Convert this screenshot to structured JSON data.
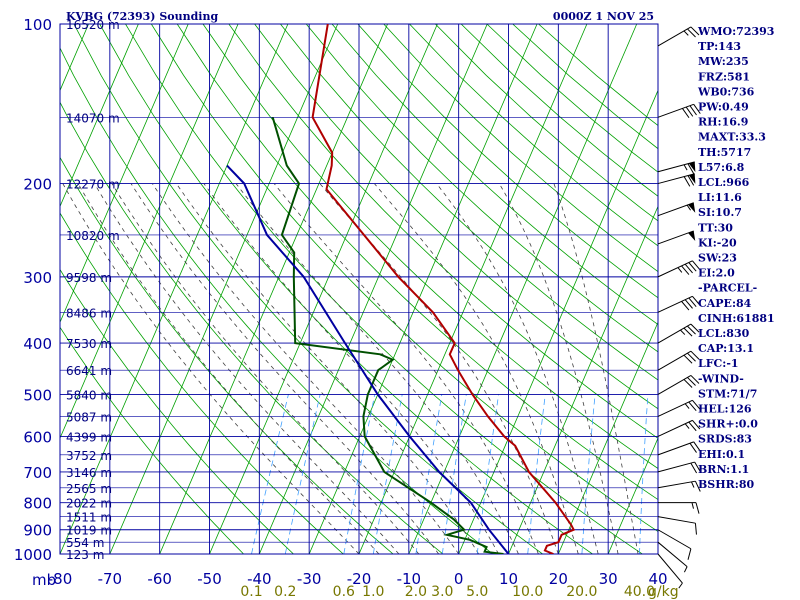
{
  "header": {
    "station": "KVBG (72393) Sounding",
    "time": "0000Z  1 NOV 25"
  },
  "chart_data": {
    "type": "line",
    "diagram": "skew-t log-p",
    "pressure_levels": [
      100,
      200,
      300,
      400,
      500,
      600,
      700,
      800,
      900,
      1000
    ],
    "pressure_labels": [
      "100",
      "200",
      "300",
      "400",
      "500",
      "600",
      "700",
      "800",
      "900",
      "1000"
    ],
    "pressure_unit": "mb",
    "temp_ticks": [
      -80,
      -70,
      -60,
      -50,
      -40,
      -30,
      -20,
      -10,
      0,
      10,
      20,
      30,
      40
    ],
    "temp_labels": [
      "-80",
      "-70",
      "-60",
      "-50",
      "-40",
      "-30",
      "-20",
      "-10",
      "0",
      "10",
      "20",
      "30",
      "40"
    ],
    "xlim": [
      -80,
      40
    ],
    "ylim": [
      1000,
      100
    ],
    "height_labels": [
      {
        "p": 100,
        "label": "16520 m"
      },
      {
        "p": 150,
        "label": "14070 m"
      },
      {
        "p": 200,
        "label": "12270 m"
      },
      {
        "p": 250,
        "label": "10820 m"
      },
      {
        "p": 300,
        "label": "9598 m"
      },
      {
        "p": 350,
        "label": "8486 m"
      },
      {
        "p": 400,
        "label": "7530 m"
      },
      {
        "p": 450,
        "label": "6641 m"
      },
      {
        "p": 500,
        "label": "5840 m"
      },
      {
        "p": 550,
        "label": "5087 m"
      },
      {
        "p": 600,
        "label": "4399 m"
      },
      {
        "p": 650,
        "label": "3752 m"
      },
      {
        "p": 700,
        "label": "3146 m"
      },
      {
        "p": 750,
        "label": "2565 m"
      },
      {
        "p": 800,
        "label": "2022 m"
      },
      {
        "p": 850,
        "label": "1511 m"
      },
      {
        "p": 900,
        "label": "1019 m"
      },
      {
        "p": 950,
        "label": "554 m"
      },
      {
        "p": 1000,
        "label": "123 m"
      }
    ],
    "mixing_ratio_labels": [
      {
        "w": 0.1,
        "label": "0.1"
      },
      {
        "w": 0.2,
        "label": "0.2"
      },
      {
        "w": 0.6,
        "label": "0.6"
      },
      {
        "w": 1.0,
        "label": "1.0"
      },
      {
        "w": 2.0,
        "label": "2.0"
      },
      {
        "w": 3.0,
        "label": "3.0"
      },
      {
        "w": 5.0,
        "label": "5.0"
      },
      {
        "w": 10.0,
        "label": "10.0"
      },
      {
        "w": 20.0,
        "label": "20.0"
      },
      {
        "w": 40.0,
        "label": "40.0"
      }
    ],
    "mixing_ratio_unit": "g/kg",
    "series": [
      {
        "role": "temperature",
        "color": "#b00000",
        "points": [
          [
            100,
            -72
          ],
          [
            150,
            -67
          ],
          [
            175,
            -60
          ],
          [
            185,
            -59
          ],
          [
            205,
            -58
          ],
          [
            300,
            -36
          ],
          [
            350,
            -26
          ],
          [
            400,
            -19
          ],
          [
            420,
            -19
          ],
          [
            450,
            -16
          ],
          [
            500,
            -11
          ],
          [
            550,
            -6
          ],
          [
            600,
            -1
          ],
          [
            625,
            2
          ],
          [
            700,
            7
          ],
          [
            800,
            15
          ],
          [
            880,
            20
          ],
          [
            900,
            21
          ],
          [
            920,
            19
          ],
          [
            950,
            19
          ],
          [
            965,
            17
          ],
          [
            985,
            17
          ],
          [
            1000,
            19
          ]
        ]
      },
      {
        "role": "dewpoint",
        "color": "#005000",
        "points": [
          [
            150,
            -75
          ],
          [
            185,
            -68
          ],
          [
            200,
            -64
          ],
          [
            250,
            -63
          ],
          [
            270,
            -59
          ],
          [
            300,
            -57
          ],
          [
            400,
            -51
          ],
          [
            420,
            -33
          ],
          [
            430,
            -30
          ],
          [
            450,
            -32
          ],
          [
            500,
            -32
          ],
          [
            550,
            -31
          ],
          [
            600,
            -29
          ],
          [
            700,
            -22
          ],
          [
            800,
            -10
          ],
          [
            860,
            -4
          ],
          [
            900,
            -1
          ],
          [
            920,
            -4
          ],
          [
            940,
            1
          ],
          [
            955,
            3
          ],
          [
            970,
            5
          ],
          [
            990,
            5
          ],
          [
            1000,
            9
          ]
        ]
      },
      {
        "role": "parcel",
        "color": "#0000a0",
        "points": [
          [
            185,
            -80
          ],
          [
            200,
            -75
          ],
          [
            250,
            -66
          ],
          [
            300,
            -55
          ],
          [
            400,
            -41
          ],
          [
            500,
            -30
          ],
          [
            600,
            -20
          ],
          [
            700,
            -11
          ],
          [
            800,
            -2
          ],
          [
            900,
            4
          ],
          [
            1000,
            10
          ]
        ]
      }
    ],
    "winds": [
      {
        "p": 110,
        "dir": 240,
        "spd": 25
      },
      {
        "p": 150,
        "dir": 250,
        "spd": 40
      },
      {
        "p": 190,
        "dir": 255,
        "spd": 65
      },
      {
        "p": 200,
        "dir": 255,
        "spd": 70
      },
      {
        "p": 230,
        "dir": 250,
        "spd": 55
      },
      {
        "p": 260,
        "dir": 250,
        "spd": 50
      },
      {
        "p": 300,
        "dir": 245,
        "spd": 45
      },
      {
        "p": 350,
        "dir": 245,
        "spd": 40
      },
      {
        "p": 400,
        "dir": 240,
        "spd": 35
      },
      {
        "p": 450,
        "dir": 240,
        "spd": 30
      },
      {
        "p": 500,
        "dir": 240,
        "spd": 30
      },
      {
        "p": 550,
        "dir": 245,
        "spd": 25
      },
      {
        "p": 600,
        "dir": 245,
        "spd": 25
      },
      {
        "p": 650,
        "dir": 250,
        "spd": 20
      },
      {
        "p": 700,
        "dir": 255,
        "spd": 20
      },
      {
        "p": 750,
        "dir": 260,
        "spd": 15
      },
      {
        "p": 800,
        "dir": 270,
        "spd": 15
      },
      {
        "p": 850,
        "dir": 280,
        "spd": 10
      },
      {
        "p": 900,
        "dir": 300,
        "spd": 10
      },
      {
        "p": 950,
        "dir": 310,
        "spd": 5
      },
      {
        "p": 1000,
        "dir": 320,
        "spd": 5
      }
    ],
    "grid": true
  },
  "indices": [
    "WMO:72393",
    "TP:143",
    "MW:235",
    "FRZ:581",
    "WB0:736",
    "PW:0.49",
    "RH:16.9",
    "MAXT:33.3",
    "TH:5717",
    "L57:6.8",
    "LCL:966",
    "LI:11.6",
    "SI:10.7",
    "TT:30",
    "KI:-20",
    "SW:23",
    "EI:2.0",
    "-PARCEL-",
    "CAPE:84",
    "CINH:61881",
    "LCL:830",
    "CAP:13.1",
    "LFC:-1",
    "-WIND-",
    "STM:71/7",
    "HEL:126",
    "SHR+:0.0",
    "SRDS:83",
    "EHI:0.1",
    "BRN:1.1",
    "BSHR:80"
  ],
  "colors": {
    "grid": "#0000a0",
    "dry_adiabat": "#00a000",
    "moist_adiabat": "#404040",
    "mixing_ratio": "#40a0ff",
    "label": "#0000a0",
    "mixing_label": "#777700"
  }
}
